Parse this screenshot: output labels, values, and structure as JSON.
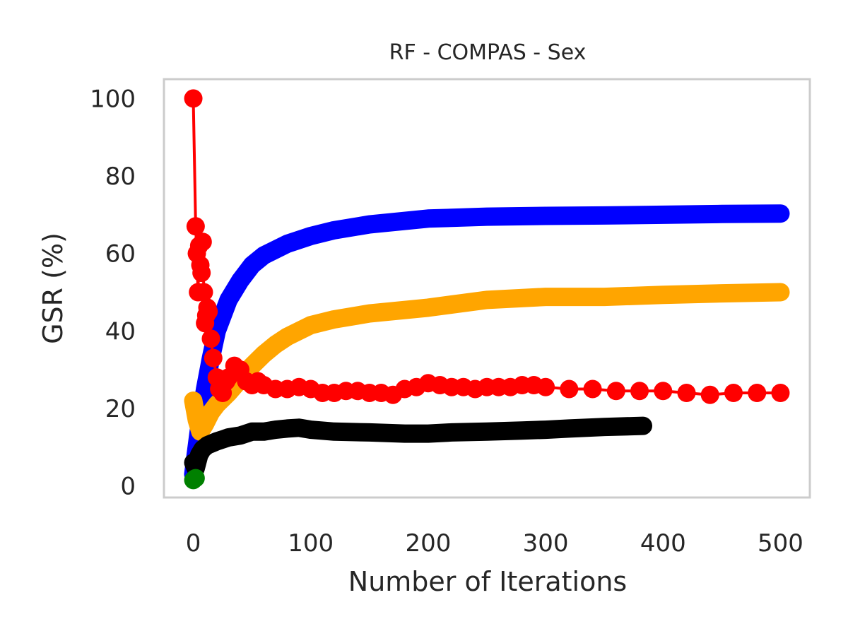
{
  "chart_data": {
    "type": "line",
    "title": "RF - COMPAS - Sex",
    "xlabel": "Number of Iterations",
    "ylabel": "GSR (%)",
    "xlim": [
      -25,
      525
    ],
    "ylim": [
      -3,
      105
    ],
    "xticks": [
      0,
      100,
      200,
      300,
      400,
      500
    ],
    "yticks": [
      0,
      20,
      40,
      60,
      80,
      100
    ],
    "grid": false,
    "legend": "none",
    "series": [
      {
        "color": "#0000ff",
        "style": "thick",
        "x": [
          0,
          2,
          5,
          10,
          15,
          20,
          30,
          40,
          50,
          60,
          80,
          100,
          120,
          150,
          200,
          250,
          300,
          350,
          400,
          450,
          500
        ],
        "y": [
          3,
          8,
          15,
          25,
          33,
          40,
          48,
          53,
          57,
          59.5,
          62.5,
          64.5,
          66,
          67.5,
          69,
          69.5,
          69.7,
          69.8,
          70,
          70.2,
          70.3
        ]
      },
      {
        "color": "#ffa500",
        "style": "thick",
        "x": [
          0,
          3,
          6,
          10,
          15,
          20,
          30,
          40,
          50,
          60,
          70,
          80,
          100,
          120,
          150,
          200,
          250,
          300,
          350,
          400,
          450,
          500
        ],
        "y": [
          22,
          17,
          14,
          16,
          19,
          21,
          24,
          27.5,
          31,
          34,
          36.5,
          38.5,
          41.5,
          43,
          44.5,
          46,
          48,
          48.8,
          48.8,
          49.3,
          49.7,
          50
        ]
      },
      {
        "color": "#ff0000",
        "style": "marker",
        "x": [
          0,
          2,
          3,
          4,
          5,
          6,
          7,
          8,
          9,
          10,
          11,
          12,
          13,
          15,
          17,
          20,
          22,
          25,
          28,
          30,
          35,
          40,
          45,
          50,
          55,
          60,
          70,
          80,
          90,
          100,
          110,
          120,
          130,
          140,
          150,
          160,
          170,
          180,
          190,
          200,
          210,
          220,
          230,
          240,
          250,
          260,
          270,
          280,
          290,
          300,
          320,
          340,
          360,
          380,
          400,
          420,
          440,
          460,
          480,
          500
        ],
        "y": [
          100,
          67,
          60,
          50,
          62,
          57,
          55,
          63,
          50,
          42,
          44,
          46,
          45,
          38,
          33,
          28,
          25,
          24,
          27,
          28,
          31,
          30,
          27,
          26,
          27,
          26,
          25,
          25,
          25.5,
          25,
          24,
          24,
          24.5,
          24.5,
          24,
          24,
          23.5,
          25,
          25.5,
          26.5,
          26,
          25.5,
          25.5,
          25,
          25.5,
          25.5,
          25.5,
          26,
          26,
          25.5,
          25,
          25,
          24.5,
          24.5,
          24.5,
          24,
          23.5,
          24,
          24,
          24
        ]
      },
      {
        "color": "#000000",
        "style": "thick",
        "x": [
          0,
          2,
          5,
          8,
          12,
          16,
          20,
          25,
          30,
          40,
          50,
          60,
          70,
          80,
          90,
          100,
          120,
          150,
          180,
          200,
          220,
          250,
          280,
          300,
          320,
          350,
          383
        ],
        "y": [
          6,
          4.5,
          8,
          9.5,
          10.5,
          11,
          11.5,
          12,
          12.5,
          13,
          14,
          14,
          14.5,
          14.8,
          15,
          14.5,
          14,
          13.8,
          13.5,
          13.5,
          13.8,
          14,
          14.3,
          14.5,
          14.8,
          15.2,
          15.5
        ]
      },
      {
        "color": "#008000",
        "style": "marker",
        "x": [
          0,
          1,
          2
        ],
        "y": [
          1.5,
          1.8,
          2
        ]
      }
    ]
  }
}
